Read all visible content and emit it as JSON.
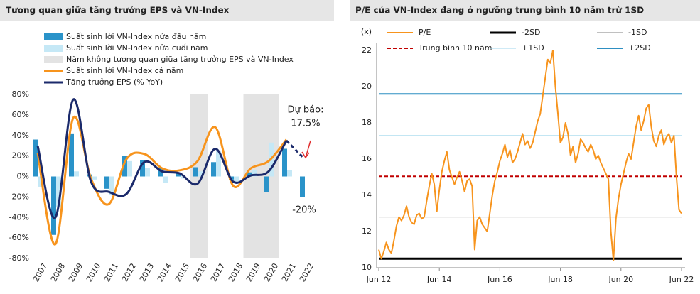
{
  "chart_data": [
    {
      "type": "combo",
      "title": "Tương quan giữa tăng trưởng EPS và VN-Index",
      "categories": [
        "2007",
        "2008",
        "2009",
        "2010",
        "2011",
        "2012",
        "2013",
        "2014",
        "2015",
        "2016",
        "2017",
        "2018",
        "2019",
        "2020",
        "2021",
        "2022"
      ],
      "series": [
        {
          "name": "Suất sinh lời VN-Index nửa đầu năm",
          "type": "bar",
          "color": "#2a93c9",
          "values": [
            36,
            -57,
            42,
            2,
            -12,
            20,
            16,
            8,
            3,
            9,
            14,
            -3,
            4,
            -15,
            27,
            -20
          ],
          "value_labels": {
            "15": "-20%"
          }
        },
        {
          "name": "Suất sinh lời VN-Index nửa cuối năm",
          "type": "bar",
          "color": "#c5e8f6",
          "values": [
            -10,
            -30,
            5,
            -3,
            -18,
            15,
            8,
            -6,
            -2,
            5,
            25,
            -5,
            6,
            33,
            6,
            null
          ]
        },
        {
          "name": "Năm không tương quan giữa tăng trưởng EPS và VN-Index",
          "type": "band",
          "color": "#e3e3e3",
          "categories": [
            "2016",
            "2019",
            "2020"
          ]
        },
        {
          "name": "Suất sinh lời VN-Index cả năm",
          "type": "line",
          "color": "#f7941d",
          "values": [
            23,
            -66,
            57,
            -2,
            -27,
            17,
            22,
            8,
            6,
            15,
            48,
            -9,
            8,
            15,
            36,
            null
          ]
        },
        {
          "name": "Tăng trưởng EPS (% YoY)",
          "type": "line",
          "color": "#1b2a6b",
          "values": [
            30,
            -40,
            75,
            -5,
            -15,
            -17,
            14,
            5,
            3,
            -7,
            27,
            -5,
            1,
            5,
            35,
            17.5
          ],
          "value_labels": {
            "15": "17.5%"
          }
        }
      ],
      "annotations": [
        "Dự báo:"
      ],
      "ylim": [
        -80,
        80
      ],
      "yticks": [
        {
          "value": -80,
          "label": "-80%"
        },
        {
          "value": -60,
          "label": "-60%"
        },
        {
          "value": -40,
          "label": "-40%"
        },
        {
          "value": -20,
          "label": "-20%"
        },
        {
          "value": 0,
          "label": "0%"
        },
        {
          "value": 20,
          "label": "20%"
        },
        {
          "value": 40,
          "label": "40%"
        },
        {
          "value": 60,
          "label": "60%"
        },
        {
          "value": 80,
          "label": "80%"
        }
      ]
    },
    {
      "type": "line",
      "title": "P/E của VN-Index đang ở ngưỡng trung bình 10 năm trừ 1SD",
      "ylabel": "(x)",
      "x": [
        "2012-06",
        "2012-07",
        "2012-08",
        "2012-09",
        "2012-10",
        "2012-11",
        "2012-12",
        "2013-01",
        "2013-02",
        "2013-03",
        "2013-04",
        "2013-05",
        "2013-06",
        "2013-07",
        "2013-08",
        "2013-09",
        "2013-10",
        "2013-11",
        "2013-12",
        "2014-01",
        "2014-02",
        "2014-03",
        "2014-04",
        "2014-05",
        "2014-06",
        "2014-07",
        "2014-08",
        "2014-09",
        "2014-10",
        "2014-11",
        "2014-12",
        "2015-01",
        "2015-02",
        "2015-03",
        "2015-04",
        "2015-05",
        "2015-06",
        "2015-07",
        "2015-08",
        "2015-09",
        "2015-10",
        "2015-11",
        "2015-12",
        "2016-01",
        "2016-02",
        "2016-03",
        "2016-04",
        "2016-05",
        "2016-06",
        "2016-07",
        "2016-08",
        "2016-09",
        "2016-10",
        "2016-11",
        "2016-12",
        "2017-01",
        "2017-02",
        "2017-03",
        "2017-04",
        "2017-05",
        "2017-06",
        "2017-07",
        "2017-08",
        "2017-09",
        "2017-10",
        "2017-11",
        "2017-12",
        "2018-01",
        "2018-02",
        "2018-03",
        "2018-04",
        "2018-05",
        "2018-06",
        "2018-07",
        "2018-08",
        "2018-09",
        "2018-10",
        "2018-11",
        "2018-12",
        "2019-01",
        "2019-02",
        "2019-03",
        "2019-04",
        "2019-05",
        "2019-06",
        "2019-07",
        "2019-08",
        "2019-09",
        "2019-10",
        "2019-11",
        "2019-12",
        "2020-01",
        "2020-02",
        "2020-03",
        "2020-04",
        "2020-05",
        "2020-06",
        "2020-07",
        "2020-08",
        "2020-09",
        "2020-10",
        "2020-11",
        "2020-12",
        "2021-01",
        "2021-02",
        "2021-03",
        "2021-04",
        "2021-05",
        "2021-06",
        "2021-07",
        "2021-08",
        "2021-09",
        "2021-10",
        "2021-11",
        "2021-12",
        "2022-01",
        "2022-02",
        "2022-03",
        "2022-04",
        "2022-05",
        "2022-06"
      ],
      "series": [
        {
          "name": "P/E",
          "color": "#f7941d",
          "values": [
            11.0,
            10.5,
            10.9,
            11.4,
            11.0,
            10.8,
            11.5,
            12.3,
            12.8,
            12.6,
            12.9,
            13.4,
            12.8,
            12.5,
            12.4,
            12.9,
            13.0,
            12.7,
            12.8,
            13.7,
            14.5,
            15.2,
            14.6,
            13.1,
            14.3,
            15.3,
            15.9,
            16.4,
            15.4,
            15.0,
            14.6,
            15.0,
            15.3,
            14.8,
            14.2,
            14.8,
            14.9,
            14.5,
            11.0,
            12.6,
            12.8,
            12.4,
            12.2,
            12.0,
            13.0,
            14.0,
            14.8,
            15.3,
            15.9,
            16.3,
            16.8,
            16.1,
            16.5,
            15.8,
            16.0,
            16.4,
            16.9,
            17.4,
            16.8,
            17.0,
            16.6,
            16.9,
            17.5,
            18.1,
            18.5,
            19.5,
            20.5,
            21.5,
            21.3,
            22.0,
            20.0,
            18.5,
            16.9,
            17.2,
            18.0,
            17.4,
            16.2,
            16.7,
            15.8,
            16.3,
            17.1,
            16.9,
            16.6,
            16.4,
            16.8,
            16.5,
            16.0,
            16.2,
            15.8,
            15.5,
            15.2,
            14.9,
            12.0,
            10.4,
            12.7,
            13.8,
            14.6,
            15.2,
            15.8,
            16.3,
            16.0,
            16.9,
            17.8,
            18.4,
            17.6,
            18.1,
            18.8,
            19.0,
            17.8,
            17.0,
            16.7,
            17.3,
            17.6,
            16.8,
            17.2,
            17.4,
            16.9,
            17.3,
            15.0,
            13.2,
            13.0
          ]
        }
      ],
      "hlines": [
        {
          "name": "-2SD",
          "value": 10.5,
          "color": "#000000"
        },
        {
          "name": "-1SD",
          "value": 12.8,
          "color": "#808080"
        },
        {
          "name": "Trung bình 10 năm",
          "value": 15.05,
          "color": "#c00000"
        },
        {
          "name": "+1SD",
          "value": 17.3,
          "color": "#9fd6ec"
        },
        {
          "name": "+2SD",
          "value": 19.6,
          "color": "#2e8fc2"
        }
      ],
      "ylim": [
        10,
        22
      ],
      "yticks": [
        10,
        12,
        14,
        16,
        18,
        20,
        22
      ],
      "xlim": [
        "2012-06",
        "2022-06"
      ],
      "xticks": [
        {
          "value": "2012-06",
          "label": "Jun 12"
        },
        {
          "value": "2014-06",
          "label": "Jun 14"
        },
        {
          "value": "2016-06",
          "label": "Jun 16"
        },
        {
          "value": "2018-06",
          "label": "Jun 18"
        },
        {
          "value": "2020-06",
          "label": "Jun 20"
        },
        {
          "value": "2022-06",
          "label": "Jun 22"
        }
      ]
    }
  ]
}
